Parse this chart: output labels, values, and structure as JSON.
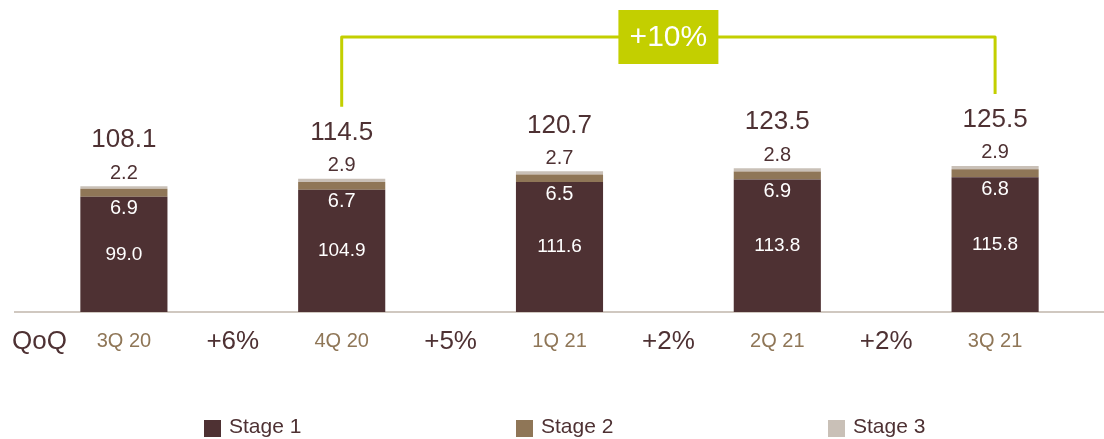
{
  "chart_data": {
    "type": "bar",
    "stacked": true,
    "categories": [
      "3Q 20",
      "4Q 20",
      "1Q 21",
      "2Q 21",
      "3Q 21"
    ],
    "series": [
      {
        "name": "Stage 1",
        "color": "#4e3133",
        "values": [
          99.0,
          104.9,
          111.6,
          113.8,
          115.8
        ],
        "value_labels": [
          "99.0",
          "104.9",
          "111.6",
          "113.8",
          "115.8"
        ]
      },
      {
        "name": "Stage 2",
        "color": "#8f7657",
        "values": [
          6.9,
          6.7,
          6.5,
          6.9,
          6.8
        ],
        "value_labels": [
          "6.9",
          "6.7",
          "6.5",
          "6.9",
          "6.8"
        ]
      },
      {
        "name": "Stage 3",
        "color": "#c9c0b7",
        "values": [
          2.2,
          2.9,
          2.7,
          2.8,
          2.9
        ],
        "value_labels": [
          "2.2",
          "2.9",
          "2.7",
          "2.8",
          "2.9"
        ]
      }
    ],
    "totals": [
      "108.1",
      "114.5",
      "120.7",
      "123.5",
      "125.5"
    ],
    "annotations": [
      "QoQ",
      "+6%",
      "+5%",
      "+2%",
      "+2%",
      "+10%"
    ],
    "legend": "bottom"
  }
}
